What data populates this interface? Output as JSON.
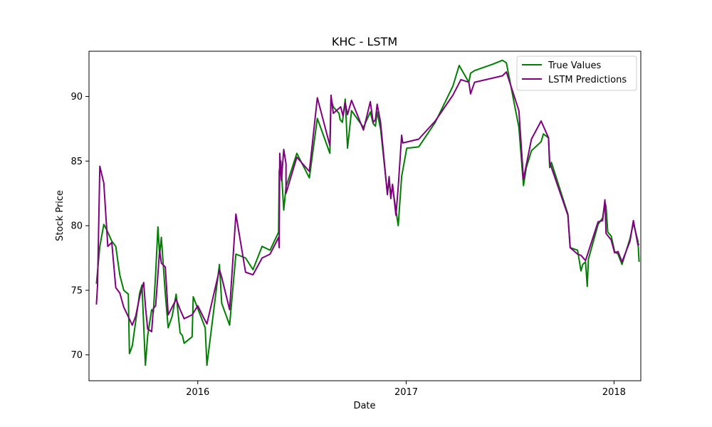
{
  "chart_data": {
    "type": "line",
    "title": "KHC - LSTM",
    "xlabel": "Date",
    "ylabel": "Stock Price",
    "xlim": [
      "2015-06-24",
      "2018-02-17"
    ],
    "ylim": [
      68,
      93.5
    ],
    "x_ticks": [
      {
        "value": "2016-01-01",
        "label": "2016"
      },
      {
        "value": "2017-01-01",
        "label": "2017"
      },
      {
        "value": "2018-01-01",
        "label": "2018"
      }
    ],
    "y_ticks": [
      70,
      75,
      80,
      85,
      90
    ],
    "grid": false,
    "legend_position": "top-right",
    "colors": {
      "true_values": "#008000",
      "lstm_predictions": "#800080"
    },
    "series": [
      {
        "name": "True Values",
        "points": [
          [
            "2015-07-07",
            75.5
          ],
          [
            "2015-07-13",
            78.4
          ],
          [
            "2015-07-20",
            80.1
          ],
          [
            "2015-07-27",
            79.5
          ],
          [
            "2015-08-03",
            78.8
          ],
          [
            "2015-08-10",
            78.4
          ],
          [
            "2015-08-17",
            76.2
          ],
          [
            "2015-08-24",
            75.0
          ],
          [
            "2015-09-01",
            74.7
          ],
          [
            "2015-09-03",
            70.1
          ],
          [
            "2015-09-08",
            70.7
          ],
          [
            "2015-09-14",
            72.6
          ],
          [
            "2015-09-21",
            74.8
          ],
          [
            "2015-09-25",
            75.4
          ],
          [
            "2015-10-01",
            69.2
          ],
          [
            "2015-10-05",
            71.5
          ],
          [
            "2015-10-12",
            73.5
          ],
          [
            "2015-10-15",
            73.3
          ],
          [
            "2015-10-19",
            76.3
          ],
          [
            "2015-10-23",
            79.9
          ],
          [
            "2015-10-26",
            77.7
          ],
          [
            "2015-10-29",
            79.1
          ],
          [
            "2015-11-05",
            74.7
          ],
          [
            "2015-11-10",
            72.1
          ],
          [
            "2015-11-17",
            73.0
          ],
          [
            "2015-11-24",
            74.7
          ],
          [
            "2015-12-01",
            71.7
          ],
          [
            "2015-12-05",
            71.5
          ],
          [
            "2015-12-08",
            70.9
          ],
          [
            "2015-12-22",
            71.4
          ],
          [
            "2015-12-24",
            74.5
          ],
          [
            "2016-01-14",
            72.1
          ],
          [
            "2016-01-17",
            69.2
          ],
          [
            "2016-02-08",
            77.0
          ],
          [
            "2016-02-12",
            74.0
          ],
          [
            "2016-02-26",
            72.3
          ],
          [
            "2016-03-08",
            77.8
          ],
          [
            "2016-03-25",
            77.5
          ],
          [
            "2016-04-07",
            76.6
          ],
          [
            "2016-04-23",
            78.4
          ],
          [
            "2016-05-07",
            78.1
          ],
          [
            "2016-05-22",
            79.5
          ],
          [
            "2016-05-23",
            84.2
          ],
          [
            "2016-05-26",
            85.0
          ],
          [
            "2016-05-31",
            81.2
          ],
          [
            "2016-06-04",
            83.0
          ],
          [
            "2016-06-23",
            85.6
          ],
          [
            "2016-07-15",
            83.7
          ],
          [
            "2016-07-29",
            88.3
          ],
          [
            "2016-08-20",
            85.6
          ],
          [
            "2016-08-22",
            89.8
          ],
          [
            "2016-08-26",
            89.2
          ],
          [
            "2016-09-05",
            88.7
          ],
          [
            "2016-09-07",
            88.2
          ],
          [
            "2016-09-11",
            88.0
          ],
          [
            "2016-09-16",
            89.8
          ],
          [
            "2016-09-20",
            86.0
          ],
          [
            "2016-09-27",
            88.9
          ],
          [
            "2016-10-18",
            87.6
          ],
          [
            "2016-10-30",
            88.8
          ],
          [
            "2016-11-04",
            87.9
          ],
          [
            "2016-11-08",
            87.7
          ],
          [
            "2016-11-11",
            88.8
          ],
          [
            "2016-11-17",
            87.5
          ],
          [
            "2016-11-29",
            82.5
          ],
          [
            "2016-12-02",
            83.5
          ],
          [
            "2016-12-05",
            82.4
          ],
          [
            "2016-12-08",
            83.0
          ],
          [
            "2016-12-14",
            81.2
          ],
          [
            "2016-12-18",
            80.0
          ],
          [
            "2016-12-24",
            83.8
          ],
          [
            "2017-01-02",
            86.0
          ],
          [
            "2017-01-23",
            86.1
          ],
          [
            "2017-02-21",
            88.0
          ],
          [
            "2017-03-24",
            90.8
          ],
          [
            "2017-04-04",
            92.4
          ],
          [
            "2017-04-21",
            91.1
          ],
          [
            "2017-04-24",
            91.8
          ],
          [
            "2017-05-01",
            92.0
          ],
          [
            "2017-06-02",
            92.5
          ],
          [
            "2017-06-19",
            92.8
          ],
          [
            "2017-06-26",
            92.6
          ],
          [
            "2017-07-18",
            87.6
          ],
          [
            "2017-07-26",
            83.1
          ],
          [
            "2017-07-31",
            84.5
          ],
          [
            "2017-08-09",
            85.8
          ],
          [
            "2017-08-26",
            86.5
          ],
          [
            "2017-08-30",
            87.1
          ],
          [
            "2017-09-08",
            86.8
          ],
          [
            "2017-09-10",
            84.5
          ],
          [
            "2017-09-13",
            84.9
          ],
          [
            "2017-10-12",
            80.9
          ],
          [
            "2017-10-16",
            78.3
          ],
          [
            "2017-10-29",
            78.1
          ],
          [
            "2017-11-04",
            76.5
          ],
          [
            "2017-11-07",
            77.0
          ],
          [
            "2017-11-12",
            77.2
          ],
          [
            "2017-11-15",
            75.3
          ],
          [
            "2017-11-17",
            77.4
          ],
          [
            "2017-12-04",
            80.1
          ],
          [
            "2017-12-12",
            80.6
          ],
          [
            "2017-12-16",
            81.8
          ],
          [
            "2017-12-18",
            81.5
          ],
          [
            "2017-12-21",
            79.5
          ],
          [
            "2017-12-27",
            79.2
          ],
          [
            "2018-01-02",
            78.0
          ],
          [
            "2018-01-08",
            77.8
          ],
          [
            "2018-01-15",
            77.0
          ],
          [
            "2018-01-29",
            79.0
          ],
          [
            "2018-02-04",
            80.2
          ],
          [
            "2018-02-12",
            78.8
          ],
          [
            "2018-02-14",
            77.2
          ]
        ]
      },
      {
        "name": "LSTM Predictions",
        "points": [
          [
            "2015-07-07",
            73.9
          ],
          [
            "2015-07-09",
            75.4
          ],
          [
            "2015-07-13",
            84.6
          ],
          [
            "2015-07-20",
            83.3
          ],
          [
            "2015-07-27",
            78.4
          ],
          [
            "2015-08-03",
            78.7
          ],
          [
            "2015-08-10",
            75.2
          ],
          [
            "2015-08-17",
            74.8
          ],
          [
            "2015-08-24",
            73.7
          ],
          [
            "2015-09-08",
            72.3
          ],
          [
            "2015-09-14",
            73.0
          ],
          [
            "2015-09-21",
            74.5
          ],
          [
            "2015-09-28",
            75.6
          ],
          [
            "2015-10-01",
            73.8
          ],
          [
            "2015-10-05",
            72.0
          ],
          [
            "2015-10-12",
            71.8
          ],
          [
            "2015-10-15",
            73.6
          ],
          [
            "2015-10-19",
            73.8
          ],
          [
            "2015-10-26",
            78.1
          ],
          [
            "2015-10-29",
            77.1
          ],
          [
            "2015-11-05",
            76.8
          ],
          [
            "2015-11-10",
            73.1
          ],
          [
            "2015-11-24",
            74.3
          ],
          [
            "2015-12-01",
            73.5
          ],
          [
            "2015-12-08",
            72.8
          ],
          [
            "2015-12-22",
            73.1
          ],
          [
            "2016-01-01",
            73.8
          ],
          [
            "2016-01-11",
            72.9
          ],
          [
            "2016-01-17",
            72.4
          ],
          [
            "2016-02-08",
            76.6
          ],
          [
            "2016-02-12",
            76.0
          ],
          [
            "2016-02-26",
            73.5
          ],
          [
            "2016-03-08",
            80.9
          ],
          [
            "2016-03-25",
            76.4
          ],
          [
            "2016-04-07",
            76.2
          ],
          [
            "2016-04-23",
            77.5
          ],
          [
            "2016-05-07",
            77.8
          ],
          [
            "2016-05-22",
            79.1
          ],
          [
            "2016-05-23",
            78.3
          ],
          [
            "2016-05-24",
            85.6
          ],
          [
            "2016-05-27",
            83.5
          ],
          [
            "2016-05-31",
            85.9
          ],
          [
            "2016-06-04",
            84.8
          ],
          [
            "2016-06-04",
            82.5
          ],
          [
            "2016-06-23",
            85.3
          ],
          [
            "2016-07-15",
            84.2
          ],
          [
            "2016-07-29",
            89.9
          ],
          [
            "2016-08-20",
            86.2
          ],
          [
            "2016-08-22",
            90.1
          ],
          [
            "2016-08-26",
            88.7
          ],
          [
            "2016-09-08",
            89.2
          ],
          [
            "2016-09-12",
            88.5
          ],
          [
            "2016-09-16",
            89.5
          ],
          [
            "2016-09-20",
            88.6
          ],
          [
            "2016-09-27",
            89.7
          ],
          [
            "2016-10-18",
            87.4
          ],
          [
            "2016-10-30",
            89.6
          ],
          [
            "2016-11-04",
            88.0
          ],
          [
            "2016-11-08",
            88.2
          ],
          [
            "2016-11-11",
            89.4
          ],
          [
            "2016-11-17",
            88.0
          ],
          [
            "2016-11-29",
            82.4
          ],
          [
            "2016-12-02",
            83.8
          ],
          [
            "2016-12-05",
            82.1
          ],
          [
            "2016-12-08",
            83.2
          ],
          [
            "2016-12-14",
            80.8
          ],
          [
            "2016-12-18",
            83.0
          ],
          [
            "2016-12-24",
            87.0
          ],
          [
            "2016-12-26",
            86.4
          ],
          [
            "2017-01-23",
            86.7
          ],
          [
            "2017-02-21",
            88.1
          ],
          [
            "2017-03-24",
            90.1
          ],
          [
            "2017-04-07",
            91.3
          ],
          [
            "2017-04-21",
            91.1
          ],
          [
            "2017-04-24",
            90.2
          ],
          [
            "2017-05-01",
            91.1
          ],
          [
            "2017-06-19",
            91.6
          ],
          [
            "2017-06-26",
            91.9
          ],
          [
            "2017-07-18",
            88.9
          ],
          [
            "2017-07-26",
            83.6
          ],
          [
            "2017-08-09",
            86.7
          ],
          [
            "2017-08-26",
            88.1
          ],
          [
            "2017-09-08",
            86.8
          ],
          [
            "2017-09-10",
            84.9
          ],
          [
            "2017-10-12",
            80.8
          ],
          [
            "2017-10-16",
            78.3
          ],
          [
            "2017-10-29",
            77.8
          ],
          [
            "2017-11-04",
            77.7
          ],
          [
            "2017-11-12",
            77.3
          ],
          [
            "2017-12-04",
            80.3
          ],
          [
            "2017-12-12",
            80.4
          ],
          [
            "2017-12-16",
            82.0
          ],
          [
            "2017-12-18",
            79.4
          ],
          [
            "2017-12-27",
            78.9
          ],
          [
            "2018-01-02",
            77.9
          ],
          [
            "2018-01-08",
            78.0
          ],
          [
            "2018-01-15",
            77.2
          ],
          [
            "2018-01-29",
            78.8
          ],
          [
            "2018-02-04",
            80.4
          ],
          [
            "2018-02-12",
            78.5
          ],
          [
            "2018-02-14",
            78.6
          ]
        ]
      }
    ]
  }
}
